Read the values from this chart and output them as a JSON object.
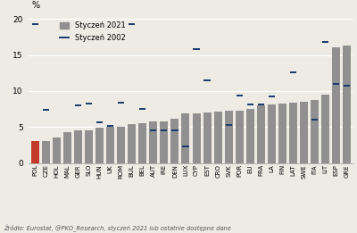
{
  "categories": [
    "POL",
    "CZE",
    "HOL",
    "MAL",
    "GER",
    "SLO",
    "HUN",
    "UK",
    "ROM",
    "BUL",
    "BEL",
    "AUT",
    "IRE",
    "DEN",
    "LUX",
    "CYP",
    "EST",
    "CRO",
    "SVK",
    "POR",
    "EU",
    "FRA",
    "LA",
    "FIN",
    "LAT",
    "SWE",
    "ITA",
    "LIT",
    "ESP",
    "GRE"
  ],
  "bar_values": [
    3.1,
    3.1,
    3.5,
    4.3,
    4.5,
    4.6,
    4.9,
    5.0,
    5.0,
    5.4,
    5.5,
    5.8,
    5.8,
    6.1,
    6.9,
    6.9,
    7.0,
    7.1,
    7.3,
    7.3,
    7.5,
    8.0,
    8.1,
    8.2,
    8.4,
    8.5,
    8.7,
    9.5,
    16.0,
    16.3
  ],
  "dash_values": [
    19.3,
    7.4,
    null,
    null,
    8.0,
    8.2,
    5.6,
    5.1,
    8.4,
    19.3,
    7.5,
    4.5,
    4.5,
    4.5,
    2.3,
    15.8,
    11.5,
    null,
    5.3,
    9.4,
    8.1,
    8.1,
    9.3,
    null,
    12.6,
    null,
    6.0,
    16.8,
    11.0,
    10.7
  ],
  "bar_colors_special": {
    "POL": "#c0392b"
  },
  "bar_color_default": "#909090",
  "dash_color": "#1a3a6b",
  "legend_bar_label": "Styczeń 2021",
  "legend_dash_label": "Styczeń 2002",
  "ylabel": "%",
  "ylim": [
    0,
    21
  ],
  "yticks": [
    0,
    5,
    10,
    15,
    20
  ],
  "source_text": "Żródło: Eurostat, @PKO_Research, styczeń 2021 lub ostatnie dostępne dane",
  "background_color": "#eeebe5"
}
